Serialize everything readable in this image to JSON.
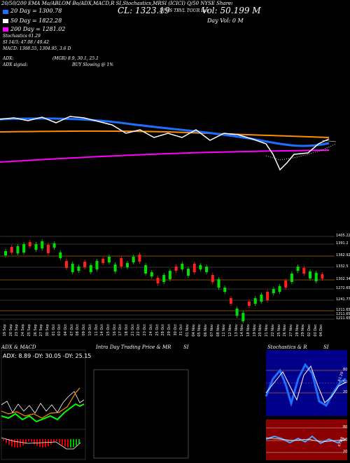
{
  "header": {
    "line1": "20/50/200 EMA Ma/ABLOM Bo/ADX,MACD,R SI,Stochastics,MRSI (ICICI) Q/50 NYSE Shares NYSDSTV-TV",
    "close": "CL: 1323.19",
    "vol": "Vol: 50.199 M",
    "day_vol": "Day Vol: 0  M",
    "ema20": "20  Day = 1300.78",
    "ema50": "50  Day = 1822.28",
    "ema200": "200  Day = 1281.02",
    "stoch": "Stochastics 61.29",
    "si": "SI 14/3: 47.08 / 49.42",
    "macd": "MACD: 1308.55,  1304.95,  3.6  D",
    "adx": "ADX:",
    "adx_vals": "(MGR) 8.9, 30.1, 25.1",
    "adx_signal": "ADX signal:",
    "buy": "BUY Slowing @ 1%",
    "mid_tag": "DJ US TRVL TOUR Ber"
  },
  "colors": {
    "ema20": "#ffffff",
    "ema50": "#1e6fff",
    "ema200": "#ff00ff",
    "orange": "#ff8c00",
    "up": "#00e000",
    "down": "#ff2020"
  },
  "price_axis": [
    "1405.22",
    "1391.2",
    "1362.92",
    "1332.5",
    "1302.34",
    "1272.65",
    "1241.77",
    "1211.65",
    "1211.65",
    "1211.65"
  ],
  "dates": [
    "19 Sep",
    "20 Sep",
    "23 Sep",
    "24 Sep",
    "25 Sep",
    "26 Sep",
    "27 Sep",
    "30 Sep",
    "01 Oct",
    "03 Oct",
    "04 Oct",
    "07 Oct",
    "08 Oct",
    "09 Oct",
    "10 Oct",
    "11 Oct",
    "14 Oct",
    "15 Oct",
    "16 Oct",
    "17 Oct",
    "18 Oct",
    "21 Oct",
    "22 Oct",
    "23 Oct",
    "24 Oct",
    "25 Oct",
    "28 Oct",
    "29 Oct",
    "30 Oct",
    "31 Oct",
    "01 Nov",
    "04 Nov",
    "05 Nov",
    "06 Nov",
    "07 Nov",
    "08 Nov",
    "11 Nov",
    "12 Nov",
    "13 Nov",
    "14 Nov",
    "18 Nov",
    "19 Nov",
    "20 Nov",
    "21 Nov",
    "22 Nov",
    "25 Nov",
    "26 Nov",
    "27 Nov",
    "28 Nov",
    "29 Nov",
    "02 Dec",
    "03 Dec",
    "04 Dec"
  ],
  "panels": {
    "adx_title": "ADX  & MACD",
    "adx_vals": "ADX: 8.89  -DY: 30.05  -DY: 25.15",
    "intra_title": "Intra Day Trading Price  & MR",
    "intra_si": "SI",
    "stoch_title": "Stochastics & R",
    "stoch_si": "SI",
    "stoch_labels": [
      "80",
      "50",
      "20"
    ],
    "si_labels": [
      "80",
      "50",
      "20"
    ],
    "stoch_val": "61.29",
    "si_val": "47.08"
  }
}
